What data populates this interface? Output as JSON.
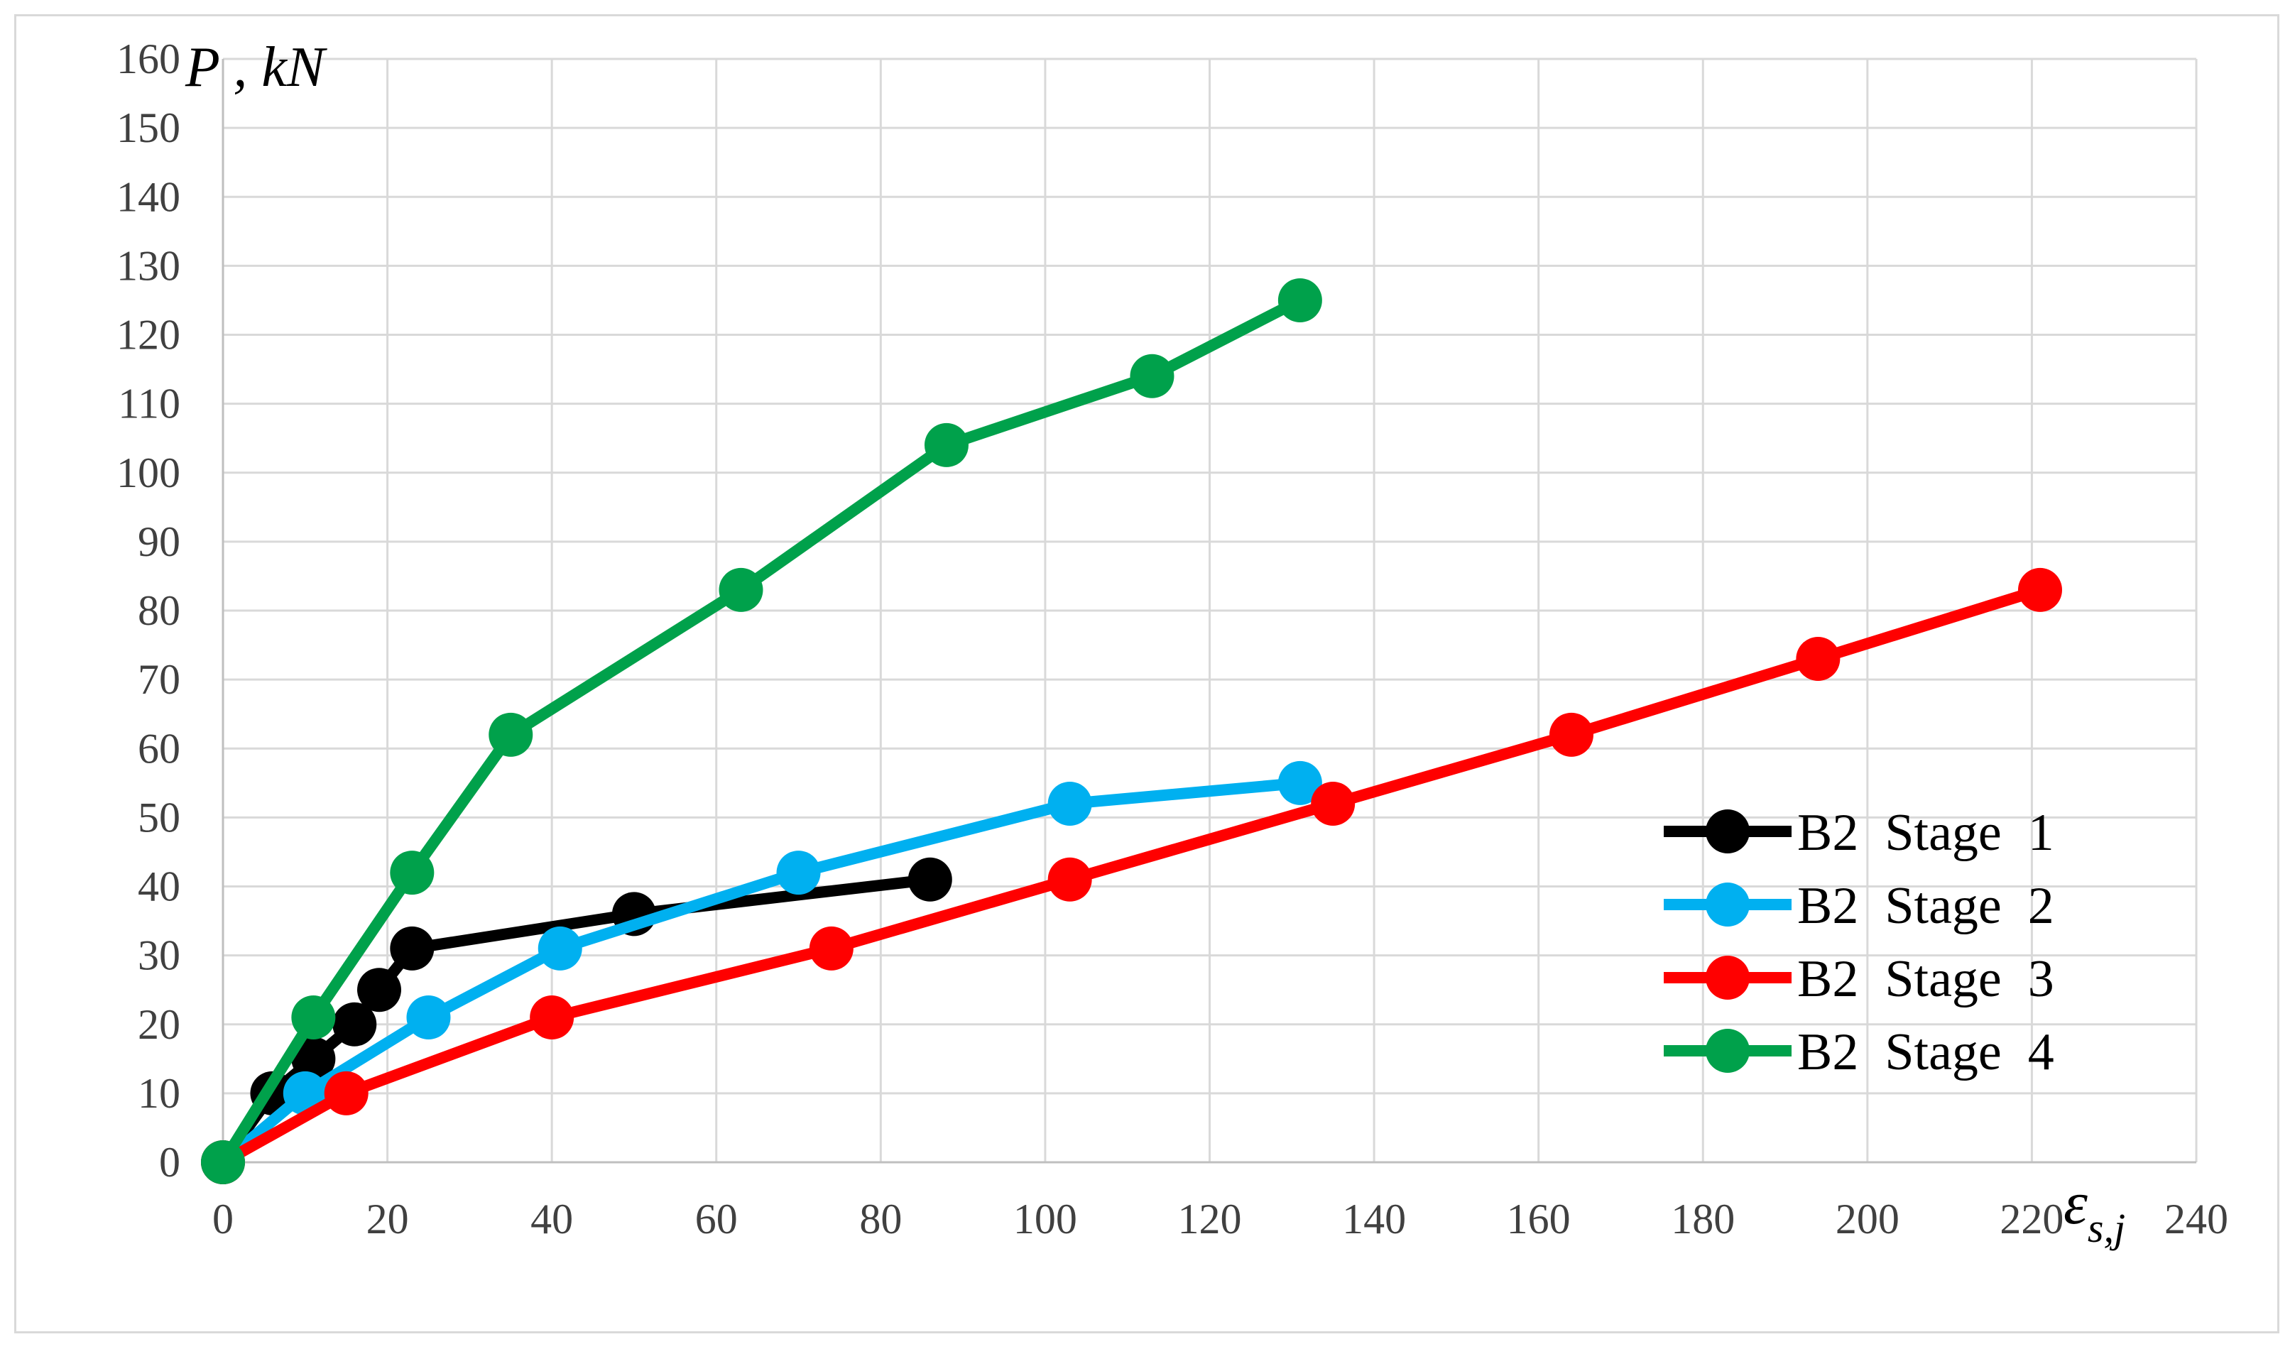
{
  "chart_data": {
    "type": "line",
    "title": "",
    "ylabel": "P , kN",
    "xlabel": "εs,j",
    "xlabel_main": "ε",
    "xlabel_sub": "s,j",
    "xlim": [
      0,
      240
    ],
    "ylim": [
      0,
      160
    ],
    "x_ticks": [
      0,
      20,
      40,
      60,
      80,
      100,
      120,
      140,
      160,
      180,
      200,
      220,
      240
    ],
    "y_ticks": [
      0,
      10,
      20,
      30,
      40,
      50,
      60,
      70,
      80,
      90,
      100,
      110,
      120,
      130,
      140,
      150,
      160
    ],
    "grid": true,
    "legend_position": "right",
    "series": [
      {
        "name": "B2  Stage  1",
        "color": "#000000",
        "x": [
          0,
          6,
          11,
          16,
          19,
          23,
          50,
          86
        ],
        "y": [
          0,
          10,
          15,
          20,
          25,
          31,
          36,
          41
        ]
      },
      {
        "name": "B2  Stage  2",
        "color": "#00b0f0",
        "x": [
          0,
          10,
          25,
          41,
          70,
          103,
          131
        ],
        "y": [
          0,
          10,
          21,
          31,
          42,
          52,
          55
        ]
      },
      {
        "name": "B2  Stage  3",
        "color": "#ff0000",
        "x": [
          0,
          15,
          40,
          74,
          103,
          135,
          164,
          194,
          221
        ],
        "y": [
          0,
          10,
          21,
          31,
          41,
          52,
          62,
          73,
          83
        ]
      },
      {
        "name": "B2  Stage  4",
        "color": "#00a14b",
        "x": [
          0,
          11,
          23,
          35,
          63,
          88,
          113,
          131
        ],
        "y": [
          0,
          21,
          42,
          62,
          83,
          104,
          114,
          125
        ]
      }
    ]
  }
}
